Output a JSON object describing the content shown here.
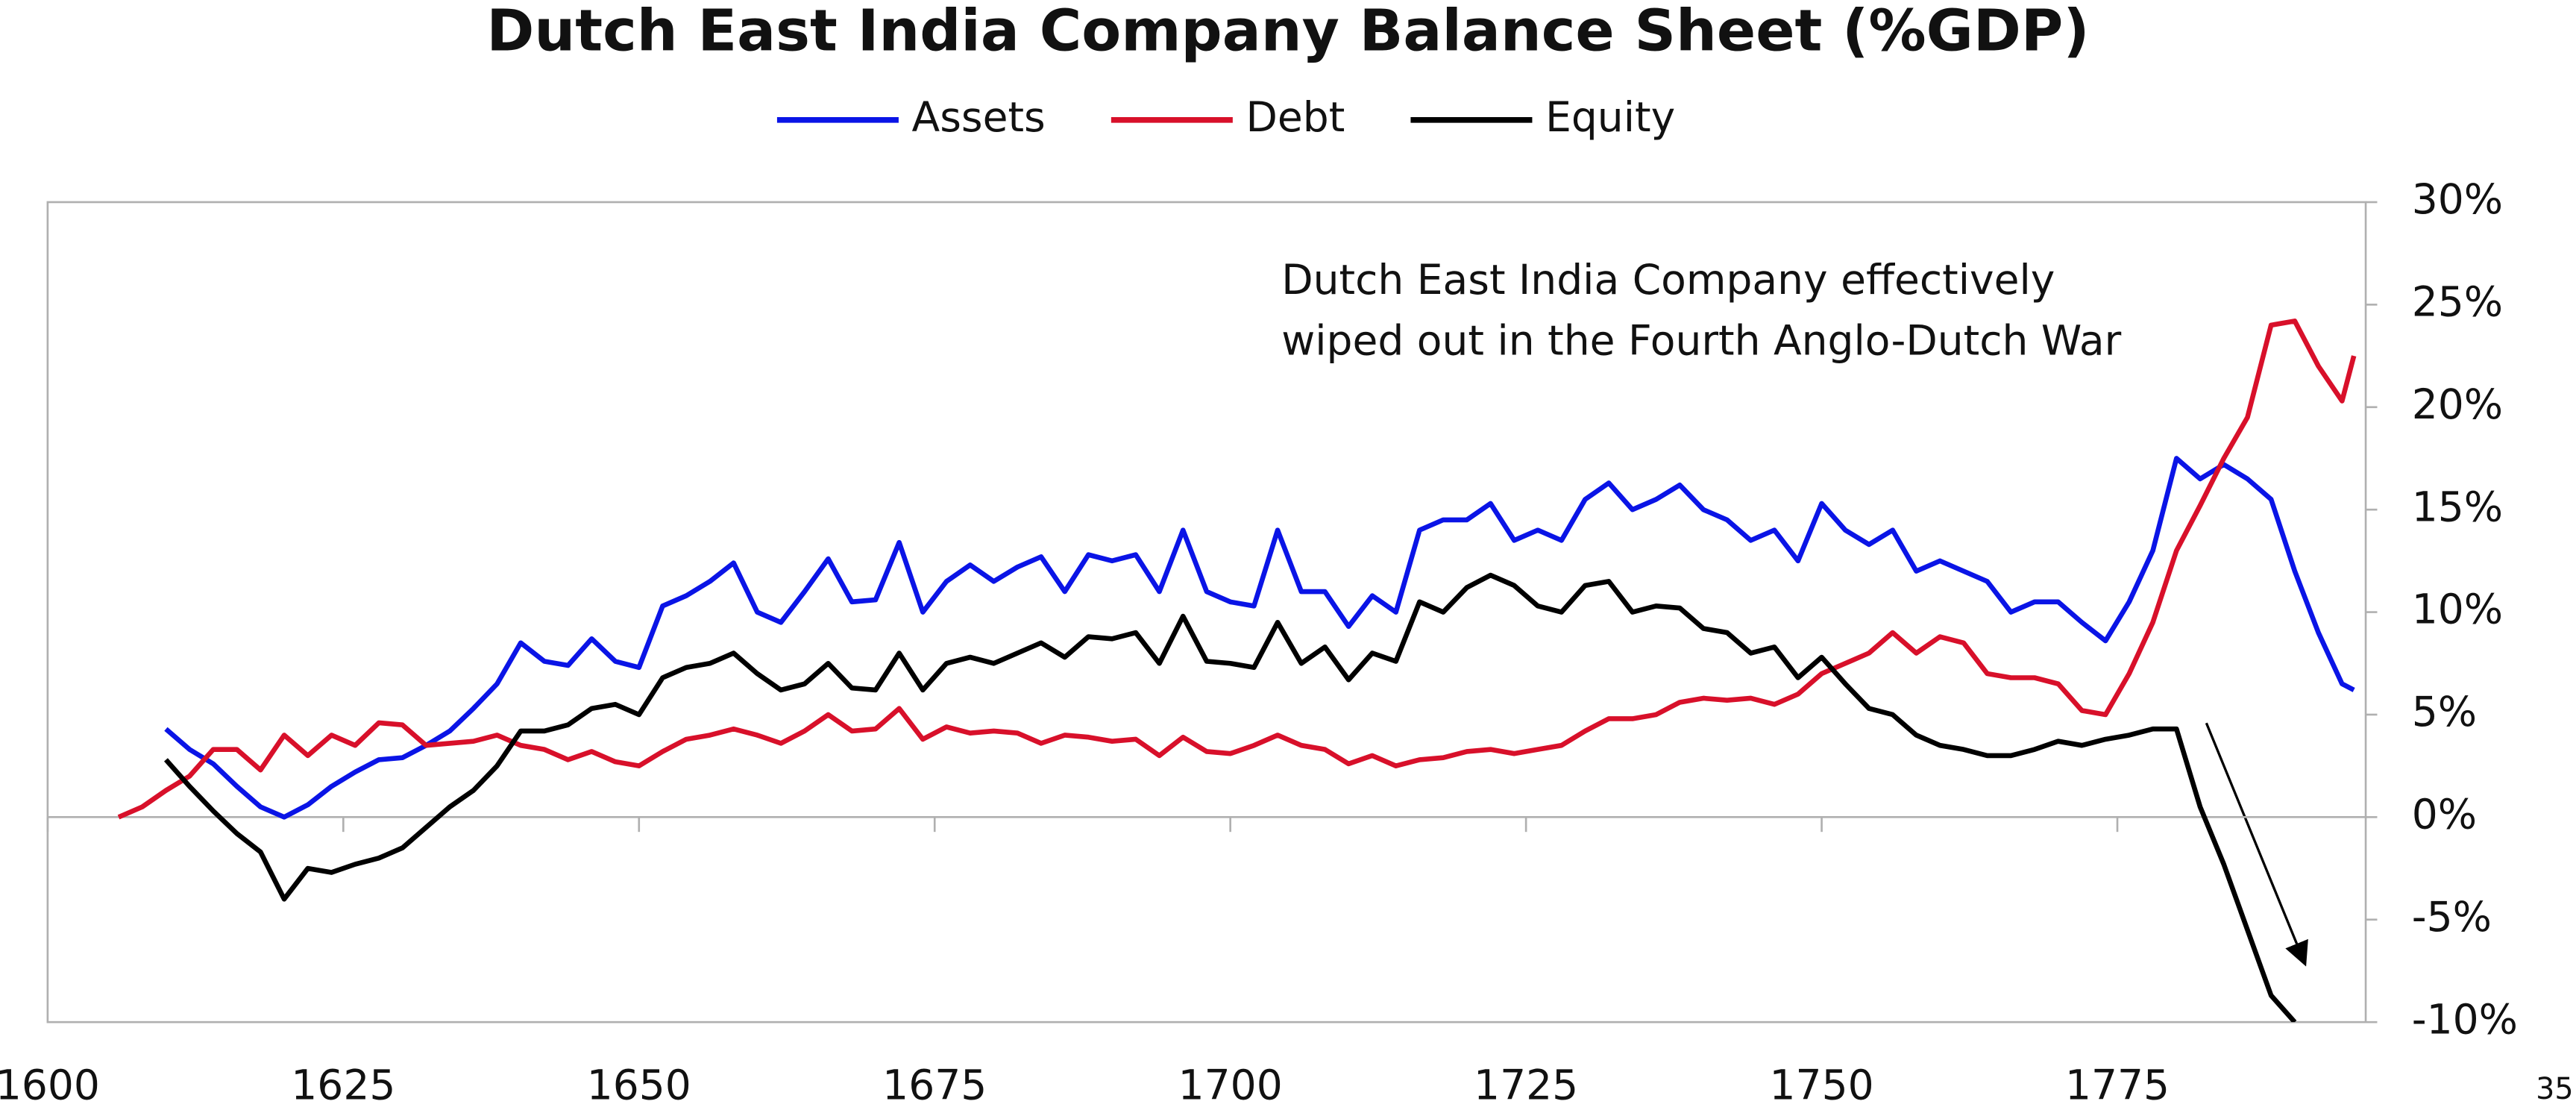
{
  "chart_data": {
    "type": "line",
    "title": "Dutch East India Company Balance Sheet (%GDP)",
    "annotation": [
      "Dutch East India Company effectively",
      "wiped out in the Fourth Anglo-Dutch War"
    ],
    "x": [
      1606,
      1608,
      1610,
      1612,
      1614,
      1616,
      1618,
      1620,
      1622,
      1624,
      1626,
      1628,
      1630,
      1632,
      1634,
      1636,
      1638,
      1640,
      1642,
      1644,
      1646,
      1648,
      1650,
      1652,
      1654,
      1656,
      1658,
      1660,
      1662,
      1664,
      1666,
      1668,
      1670,
      1672,
      1674,
      1676,
      1678,
      1680,
      1682,
      1684,
      1686,
      1688,
      1690,
      1692,
      1694,
      1696,
      1698,
      1700,
      1702,
      1704,
      1706,
      1708,
      1710,
      1712,
      1714,
      1716,
      1718,
      1720,
      1722,
      1724,
      1726,
      1728,
      1730,
      1732,
      1734,
      1736,
      1738,
      1740,
      1742,
      1744,
      1746,
      1748,
      1750,
      1752,
      1754,
      1756,
      1758,
      1760,
      1762,
      1764,
      1766,
      1768,
      1770,
      1772,
      1774,
      1776,
      1778,
      1780,
      1782,
      1784,
      1786,
      1788,
      1790,
      1792,
      1794,
      1795
    ],
    "series": [
      {
        "name": "Assets",
        "color": "#0a14e6",
        "values": [
          null,
          null,
          4.3,
          3.3,
          2.6,
          1.5,
          0.5,
          0.0,
          0.6,
          1.5,
          2.2,
          2.8,
          2.9,
          3.5,
          4.2,
          5.3,
          6.5,
          8.5,
          7.6,
          7.4,
          8.7,
          7.6,
          7.3,
          10.3,
          10.8,
          11.5,
          12.4,
          10.0,
          9.5,
          11.0,
          12.6,
          10.5,
          10.6,
          13.4,
          10.0,
          11.5,
          12.3,
          11.5,
          12.2,
          12.7,
          11.0,
          12.8,
          12.5,
          12.8,
          11.0,
          14.0,
          11.0,
          10.5,
          10.3,
          14.0,
          11.0,
          11.0,
          9.3,
          10.8,
          10.0,
          14.0,
          14.5,
          14.5,
          15.3,
          13.5,
          14.0,
          13.5,
          15.5,
          16.3,
          15.0,
          15.5,
          16.2,
          15.0,
          14.5,
          13.5,
          14.0,
          12.5,
          15.3,
          14.0,
          13.3,
          14.0,
          12.0,
          12.5,
          12.0,
          11.5,
          10.0,
          10.5,
          10.5,
          9.5,
          8.6,
          10.5,
          13.0,
          17.5,
          16.5,
          17.2,
          16.5,
          15.5,
          12.0,
          9.0,
          6.5,
          6.2
        ]
      },
      {
        "name": "Debt",
        "color": "#d8102a",
        "values": [
          0.0,
          0.5,
          1.3,
          2.0,
          3.3,
          3.3,
          2.3,
          4.0,
          3.0,
          4.0,
          3.5,
          4.6,
          4.5,
          3.5,
          3.6,
          3.7,
          4.0,
          3.5,
          3.3,
          2.8,
          3.2,
          2.7,
          2.5,
          3.2,
          3.8,
          4.0,
          4.3,
          4.0,
          3.6,
          4.2,
          5.0,
          4.2,
          4.3,
          5.3,
          3.8,
          4.4,
          4.1,
          4.2,
          4.1,
          3.6,
          4.0,
          3.9,
          3.7,
          3.8,
          3.0,
          3.9,
          3.2,
          3.1,
          3.5,
          4.0,
          3.5,
          3.3,
          2.6,
          3.0,
          2.5,
          2.8,
          2.9,
          3.2,
          3.3,
          3.1,
          3.3,
          3.5,
          4.2,
          4.8,
          4.8,
          5.0,
          5.6,
          5.8,
          5.7,
          5.8,
          5.5,
          6.0,
          7.0,
          7.5,
          8.0,
          9.0,
          8.0,
          8.8,
          8.5,
          7.0,
          6.8,
          6.8,
          6.5,
          5.2,
          5.0,
          7.0,
          9.5,
          13.0,
          15.2,
          17.5,
          19.5,
          24.0,
          24.2,
          22.0,
          20.3,
          22.5
        ]
      },
      {
        "name": "Equity",
        "color": "#000000",
        "values": [
          null,
          null,
          2.8,
          1.5,
          0.3,
          -0.8,
          -1.7,
          -4.0,
          -2.5,
          -2.7,
          -2.3,
          -2.0,
          -1.5,
          -0.5,
          0.5,
          1.3,
          2.5,
          4.2,
          4.2,
          4.5,
          5.3,
          5.5,
          5.0,
          6.8,
          7.3,
          7.5,
          8.0,
          7.0,
          6.2,
          6.5,
          7.5,
          6.3,
          6.2,
          8.0,
          6.2,
          7.5,
          7.8,
          7.5,
          8.0,
          8.5,
          7.8,
          8.8,
          8.7,
          9.0,
          7.5,
          9.8,
          7.6,
          7.5,
          7.3,
          9.5,
          7.5,
          8.3,
          6.7,
          8.0,
          7.6,
          10.5,
          10.0,
          11.2,
          11.8,
          11.3,
          10.3,
          10.0,
          11.3,
          11.5,
          10.0,
          10.3,
          10.2,
          9.2,
          9.0,
          8.0,
          8.3,
          6.8,
          7.8,
          6.5,
          5.3,
          5.0,
          4.0,
          3.5,
          3.3,
          3.0,
          3.0,
          3.3,
          3.7,
          3.5,
          3.8,
          4.0,
          4.3,
          4.3,
          0.5,
          -2.3,
          -5.5,
          -8.7,
          -10.0,
          null,
          null,
          null
        ]
      }
    ],
    "xlim": [
      1600,
      1796
    ],
    "xticks": [
      1600,
      1625,
      1650,
      1675,
      1700,
      1725,
      1750,
      1775
    ],
    "ylim": [
      -10,
      30
    ],
    "yticks": [
      {
        "value": 30,
        "label": "30%"
      },
      {
        "value": 25,
        "label": "25%"
      },
      {
        "value": 20,
        "label": "20%"
      },
      {
        "value": 15,
        "label": "15%"
      },
      {
        "value": 10,
        "label": "10%"
      },
      {
        "value": 5,
        "label": "5%"
      },
      {
        "value": 0,
        "label": "0%"
      },
      {
        "value": -5,
        "label": "-5%"
      },
      {
        "value": -10,
        "label": "-10%"
      }
    ],
    "y_axis_side": "right",
    "zero_line": true,
    "legend": "top"
  },
  "page_number": "35"
}
